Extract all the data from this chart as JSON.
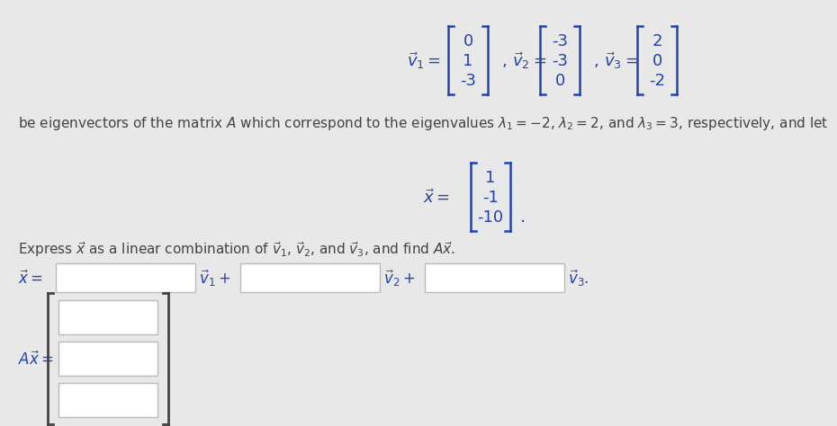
{
  "bg_color": "#e8e8e8",
  "text_color": "#444444",
  "blue_color": "#2244aa",
  "v1": [
    "0",
    "1",
    "-3"
  ],
  "v2": [
    "-3",
    "-3",
    "0"
  ],
  "v3": [
    "2",
    "0",
    "-2"
  ],
  "x_vec": [
    "1",
    "-1",
    "-10"
  ],
  "line1": "be eigenvectors of the matrix $A$ which correspond to the eigenvalues $\\lambda_1 = -2$, $\\lambda_2 = 2$, and $\\lambda_3 = 3$, respectively, and let",
  "line2": "Express $\\vec{x}$ as a linear combination of $\\vec{v}_1$, $\\vec{v}_2$, and $\\vec{v}_3$, and find $A\\vec{x}$.",
  "input_box_color": "#ffffff",
  "input_box_edge": "#bbbbbb",
  "font_size": 12
}
